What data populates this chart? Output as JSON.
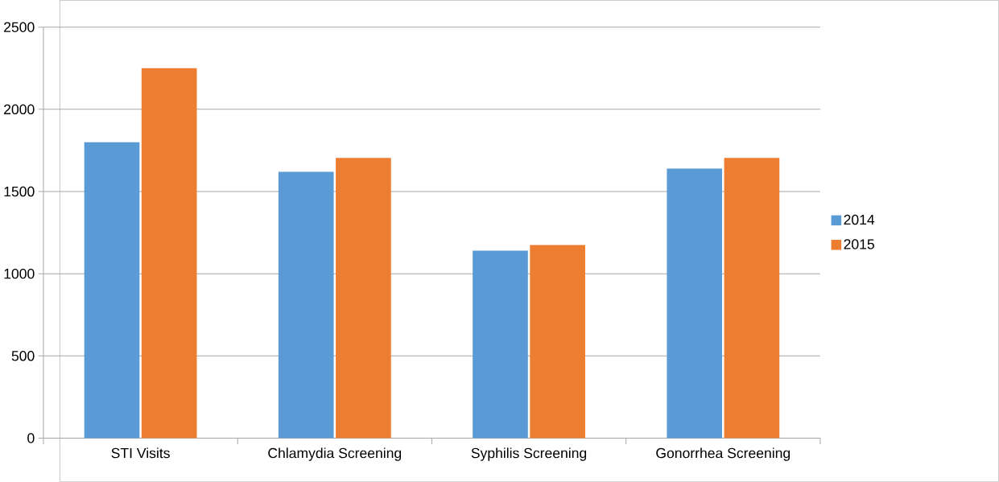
{
  "chart_data": {
    "type": "bar",
    "categories": [
      "STI Visits",
      "Chlamydia Screening",
      "Syphilis Screening",
      "Gonorrhea Screening"
    ],
    "series": [
      {
        "name": "2014",
        "color": "#5b9bd5",
        "values": [
          1800,
          1620,
          1140,
          1640
        ]
      },
      {
        "name": "2015",
        "color": "#ed7d31",
        "values": [
          2250,
          1705,
          1175,
          1705
        ]
      }
    ],
    "ylim": [
      0,
      2500
    ],
    "yticks": [
      0,
      500,
      1000,
      1500,
      2000,
      2500
    ],
    "grid": "y",
    "legend": "right"
  }
}
